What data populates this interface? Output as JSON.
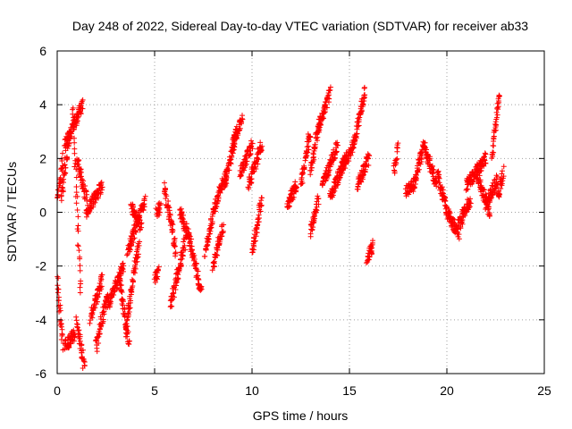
{
  "chart_data": {
    "type": "scatter",
    "title": "Day 248 of 2022, Sidereal Day-to-day VTEC variation (SDTVAR) for receiver ab33",
    "xlabel": "GPS time / hours",
    "ylabel": "SDTVAR / TECUs",
    "xlim": [
      0,
      25
    ],
    "ylim": [
      -6,
      6
    ],
    "xticks": [
      "0",
      "5",
      "10",
      "15",
      "20",
      "25"
    ],
    "yticks": [
      "-6",
      "-4",
      "-2",
      "0",
      "2",
      "4",
      "6"
    ],
    "grid": true,
    "marker": "+",
    "marker_color": "#ff0000",
    "series": [
      {
        "name": "SDTVAR",
        "segments": [
          {
            "x0": 0.0,
            "x1": 0.3,
            "y0": 0.5,
            "y1": 2.0
          },
          {
            "x0": 0.0,
            "x1": 0.3,
            "y0": -2.5,
            "y1": -5.0
          },
          {
            "x0": 0.2,
            "x1": 0.6,
            "y0": 0.5,
            "y1": 2.8
          },
          {
            "x0": 0.4,
            "x1": 1.3,
            "y0": 2.5,
            "y1": 4.0
          },
          {
            "x0": 0.4,
            "x1": 0.9,
            "y0": -5.0,
            "y1": -4.5
          },
          {
            "x0": 0.8,
            "x1": 1.2,
            "y0": 4.0,
            "y1": -3.0
          },
          {
            "x0": 1.0,
            "x1": 1.5,
            "y0": 2.0,
            "y1": 0.5
          },
          {
            "x0": 1.0,
            "x1": 1.4,
            "y0": -4.0,
            "y1": -5.8
          },
          {
            "x0": 1.5,
            "x1": 2.3,
            "y0": 0.0,
            "y1": 1.0
          },
          {
            "x0": 1.7,
            "x1": 2.3,
            "y0": -4.0,
            "y1": -2.5
          },
          {
            "x0": 2.0,
            "x1": 2.6,
            "y0": -5.0,
            "y1": -3.0
          },
          {
            "x0": 2.6,
            "x1": 3.4,
            "y0": -3.5,
            "y1": -2.0
          },
          {
            "x0": 3.2,
            "x1": 3.7,
            "y0": -2.5,
            "y1": -5.0
          },
          {
            "x0": 3.5,
            "x1": 4.2,
            "y0": -4.5,
            "y1": -1.0
          },
          {
            "x0": 3.6,
            "x1": 4.5,
            "y0": -1.5,
            "y1": 0.5
          },
          {
            "x0": 3.8,
            "x1": 4.3,
            "y0": 0.2,
            "y1": -0.5
          },
          {
            "x0": 5.0,
            "x1": 5.2,
            "y0": -2.5,
            "y1": -2.2
          },
          {
            "x0": 5.1,
            "x1": 5.3,
            "y0": 0.0,
            "y1": 0.2
          },
          {
            "x0": 5.5,
            "x1": 6.1,
            "y0": 1.0,
            "y1": -1.5
          },
          {
            "x0": 5.8,
            "x1": 6.6,
            "y0": -3.5,
            "y1": -1.0
          },
          {
            "x0": 6.3,
            "x1": 6.8,
            "y0": 0.0,
            "y1": -1.0
          },
          {
            "x0": 6.8,
            "x1": 7.4,
            "y0": -1.0,
            "y1": -3.0
          },
          {
            "x0": 7.6,
            "x1": 8.2,
            "y0": -1.5,
            "y1": 0.5
          },
          {
            "x0": 8.0,
            "x1": 8.5,
            "y0": -2.0,
            "y1": -0.5
          },
          {
            "x0": 8.2,
            "x1": 8.7,
            "y0": 0.5,
            "y1": 1.5
          },
          {
            "x0": 8.6,
            "x1": 9.2,
            "y0": 1.0,
            "y1": 3.0
          },
          {
            "x0": 9.0,
            "x1": 9.5,
            "y0": 2.5,
            "y1": 3.5
          },
          {
            "x0": 9.4,
            "x1": 10.0,
            "y0": 1.5,
            "y1": 2.5
          },
          {
            "x0": 9.8,
            "x1": 10.5,
            "y0": 1.0,
            "y1": 2.5
          },
          {
            "x0": 10.0,
            "x1": 10.5,
            "y0": -1.5,
            "y1": 0.5
          },
          {
            "x0": 11.8,
            "x1": 12.3,
            "y0": 0.3,
            "y1": 1.0
          },
          {
            "x0": 12.5,
            "x1": 13.0,
            "y0": 1.0,
            "y1": 3.0
          },
          {
            "x0": 13.0,
            "x1": 13.5,
            "y0": 1.5,
            "y1": 3.5
          },
          {
            "x0": 13.0,
            "x1": 13.4,
            "y0": -0.8,
            "y1": 0.5
          },
          {
            "x0": 13.4,
            "x1": 14.0,
            "y0": 3.0,
            "y1": 4.5
          },
          {
            "x0": 13.6,
            "x1": 14.4,
            "y0": 1.0,
            "y1": 2.5
          },
          {
            "x0": 14.0,
            "x1": 14.8,
            "y0": 0.5,
            "y1": 2.0
          },
          {
            "x0": 14.5,
            "x1": 15.2,
            "y0": 1.5,
            "y1": 2.5
          },
          {
            "x0": 15.2,
            "x1": 15.8,
            "y0": 2.5,
            "y1": 4.5
          },
          {
            "x0": 15.4,
            "x1": 16.0,
            "y0": 1.0,
            "y1": 2.0
          },
          {
            "x0": 15.9,
            "x1": 16.2,
            "y0": -1.7,
            "y1": -1.2
          },
          {
            "x0": 17.3,
            "x1": 17.5,
            "y0": 1.5,
            "y1": 2.5
          },
          {
            "x0": 17.9,
            "x1": 18.3,
            "y0": 0.8,
            "y1": 1.0
          },
          {
            "x0": 18.3,
            "x1": 18.8,
            "y0": 1.0,
            "y1": 2.5
          },
          {
            "x0": 18.8,
            "x1": 19.5,
            "y0": 2.5,
            "y1": 1.0
          },
          {
            "x0": 19.5,
            "x1": 20.0,
            "y0": 1.5,
            "y1": 0.0
          },
          {
            "x0": 20.0,
            "x1": 20.6,
            "y0": 0.0,
            "y1": -0.8
          },
          {
            "x0": 20.6,
            "x1": 21.2,
            "y0": -0.5,
            "y1": 0.5
          },
          {
            "x0": 21.0,
            "x1": 22.0,
            "y0": 1.0,
            "y1": 2.0
          },
          {
            "x0": 21.5,
            "x1": 22.2,
            "y0": 1.5,
            "y1": 0.0
          },
          {
            "x0": 22.0,
            "x1": 22.6,
            "y0": 0.3,
            "y1": 1.2
          },
          {
            "x0": 22.3,
            "x1": 22.7,
            "y0": 2.0,
            "y1": 4.5
          },
          {
            "x0": 22.6,
            "x1": 22.9,
            "y0": 0.5,
            "y1": 1.5
          }
        ]
      }
    ]
  }
}
